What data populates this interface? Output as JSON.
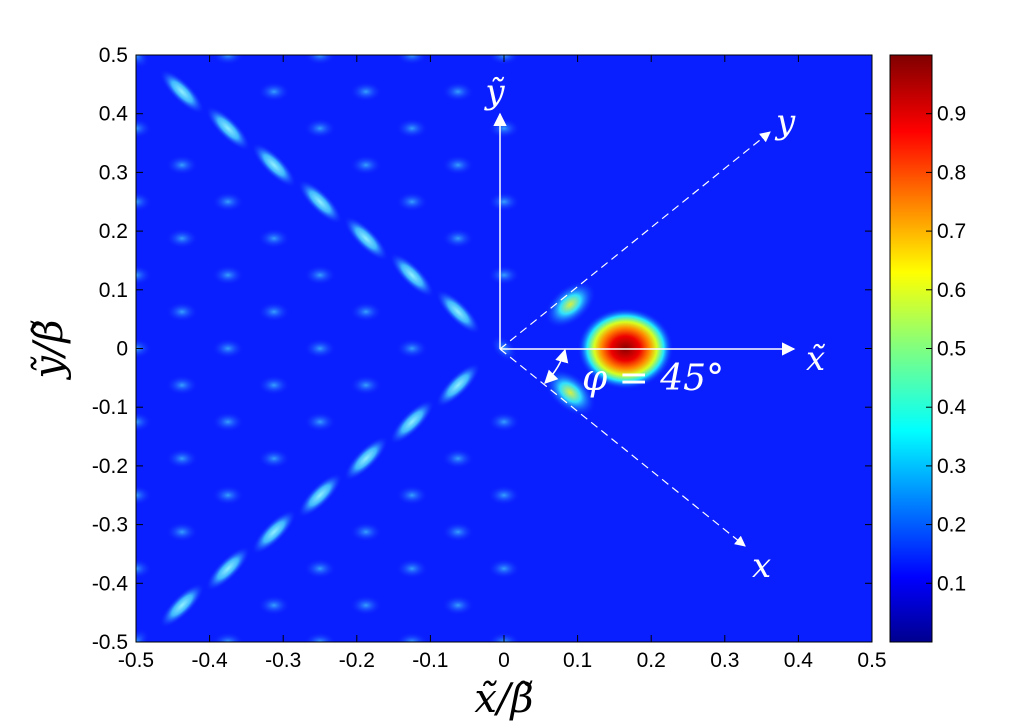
{
  "chart_data": {
    "type": "heatmap",
    "title": "",
    "xlabel": "x̃/β̃",
    "ylabel": "ỹ/β̃",
    "xlim": [
      -0.5,
      0.5
    ],
    "ylim": [
      -0.5,
      0.5
    ],
    "x_ticks": [
      "-0.5",
      "-0.4",
      "-0.3",
      "-0.2",
      "-0.1",
      "0",
      "0.1",
      "0.2",
      "0.3",
      "0.4",
      "0.5"
    ],
    "y_ticks": [
      "-0.5",
      "-0.4",
      "-0.3",
      "-0.2",
      "-0.1",
      "0",
      "0.1",
      "0.2",
      "0.3",
      "0.4",
      "0.5"
    ],
    "colorbar": {
      "range": [
        0,
        1
      ],
      "colormap": "jet",
      "ticks": [
        "0.1",
        "0.2",
        "0.3",
        "0.4",
        "0.5",
        "0.6",
        "0.7",
        "0.8",
        "0.9"
      ]
    },
    "peaks": [
      {
        "x": 0.165,
        "y": 0.0,
        "value": 1.0
      },
      {
        "x": 0.09,
        "y": 0.075,
        "value": 0.55
      },
      {
        "x": 0.09,
        "y": -0.075,
        "value": 0.55
      }
    ],
    "annotations": {
      "axis_y_tilde": "ỹ",
      "axis_x_tilde": "x̃",
      "axis_y": "y",
      "axis_x": "x",
      "angle": "φ = 45°"
    },
    "grid": false,
    "legend": "none"
  }
}
